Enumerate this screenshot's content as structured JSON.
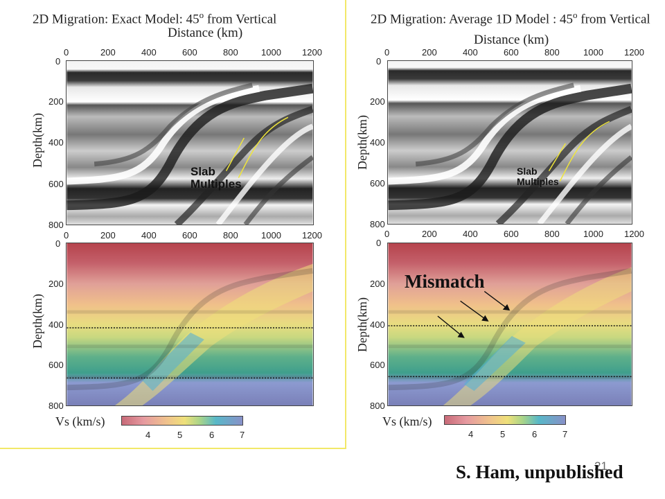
{
  "left": {
    "title": "2D Migration: Exact Model: 45",
    "title_sup": "o",
    "title_tail": " from Vertical",
    "annotation": [
      "Slab",
      "Multiples"
    ]
  },
  "right": {
    "title": "2D Migration: Average 1D Model : 45",
    "title_sup": "o",
    "title_tail": " from Vertical",
    "annotation": [
      "Slab",
      "Multiples"
    ],
    "mismatch": "Mismatch"
  },
  "axes": {
    "xlabel": "Distance (km)",
    "ylabel": "Depth(km)",
    "x_ticks": [
      "0",
      "200",
      "400",
      "600",
      "800",
      "1000",
      "1200"
    ],
    "y_ticks": [
      "0",
      "200",
      "400",
      "600",
      "800"
    ]
  },
  "colorbar": {
    "label": "Vs (km/s)",
    "ticks": [
      "4",
      "5",
      "6",
      "7"
    ]
  },
  "credit": "S. Ham, unpublished",
  "page_number": "21",
  "colors": {
    "frame": "#f2e868",
    "slab_line": "#f0e63a",
    "vs_low": "#c86a78",
    "vs_mid": "#efe07a",
    "vs_high": "#8890c8"
  }
}
